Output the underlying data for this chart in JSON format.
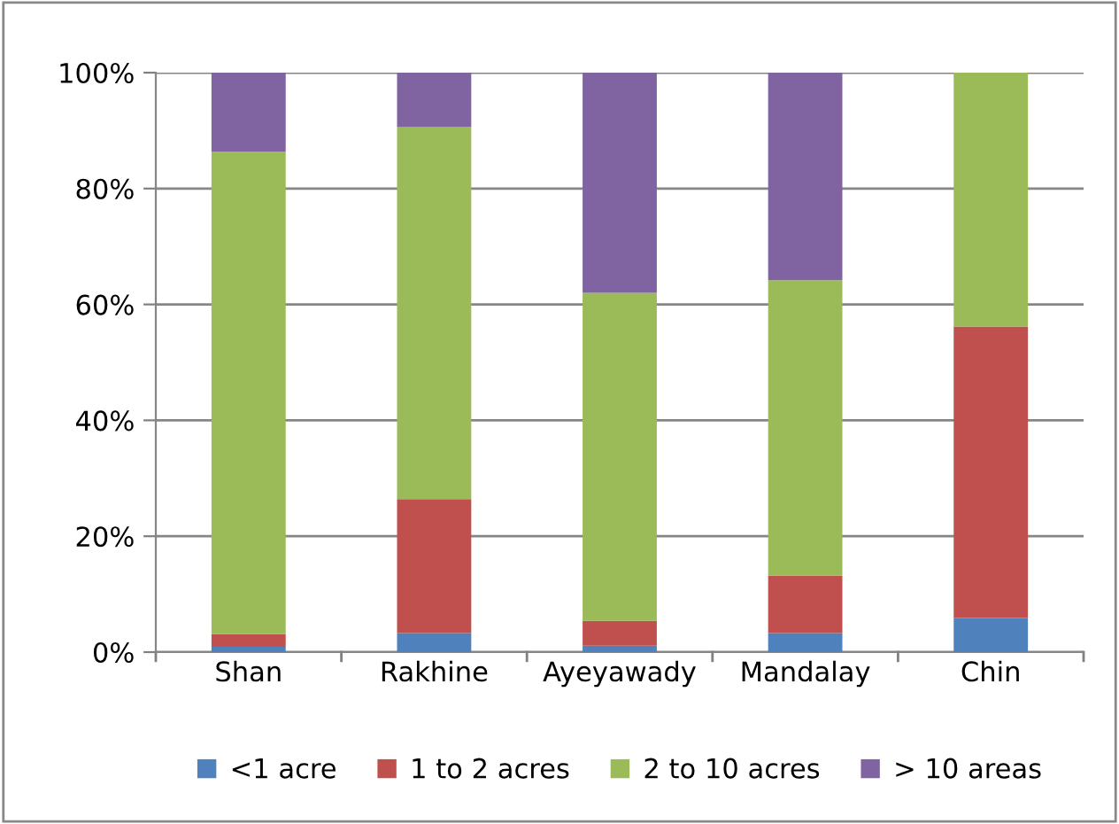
{
  "chart_data": {
    "type": "bar",
    "stacked": true,
    "categories": [
      "Shan",
      "Rakhine",
      "Ayeyawady",
      "Mandalay",
      "Chin"
    ],
    "series": [
      {
        "name": "<1 acre",
        "color": "#4f81bd",
        "values": [
          0.9,
          3.3,
          1.1,
          3.3,
          5.9
        ]
      },
      {
        "name": "1 to 2 acres",
        "color": "#c0504d",
        "values": [
          2.2,
          23.1,
          4.3,
          9.9,
          50.3
        ]
      },
      {
        "name": "2 to 10 acres",
        "color": "#9bbb59",
        "values": [
          83.3,
          64.2,
          56.6,
          51.0,
          43.8
        ]
      },
      {
        "name": "> 10 areas",
        "color": "#8064a2",
        "values": [
          13.6,
          9.4,
          38.0,
          35.8,
          0
        ]
      }
    ],
    "ylim": [
      0,
      100
    ],
    "yticks": [
      {
        "value": 0,
        "label": "0%"
      },
      {
        "value": 20,
        "label": "20%"
      },
      {
        "value": 40,
        "label": "40%"
      },
      {
        "value": 60,
        "label": "60%"
      },
      {
        "value": 80,
        "label": "80%"
      },
      {
        "value": 100,
        "label": "100%"
      }
    ],
    "grid": "y",
    "legend": "bottom"
  }
}
